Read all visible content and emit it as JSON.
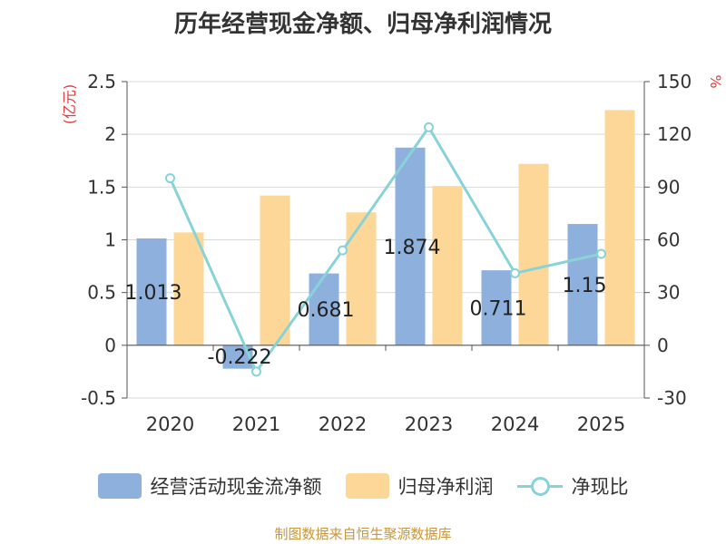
{
  "colors": {
    "bar_cash": "#8eb0dc",
    "bar_profit": "#fdd797",
    "line_ratio": "#88d3d8",
    "axis_unit": "#e23c3c",
    "source": "#c8963c",
    "text": "#333333",
    "grid": "#d9d9d9"
  },
  "source_note": "制图数据来自恒生聚源数据库",
  "chart_data": {
    "type": "bar",
    "title": "历年经营现金净额、归母净利润情况",
    "categories": [
      "2020",
      "2021",
      "2022",
      "2023",
      "2024",
      "2025"
    ],
    "series": [
      {
        "name": "经营活动现金流净额",
        "axis": "left",
        "kind": "bar",
        "values": [
          1.013,
          -0.222,
          0.681,
          1.874,
          0.711,
          1.15
        ],
        "labels": [
          "1.013",
          "-0.222",
          "0.681",
          "1.874",
          "0.711",
          "1.15"
        ]
      },
      {
        "name": "归母净利润",
        "axis": "left",
        "kind": "bar",
        "values": [
          1.07,
          1.42,
          1.26,
          1.51,
          1.72,
          2.23
        ]
      },
      {
        "name": "净现比",
        "axis": "right",
        "kind": "line",
        "values": [
          95,
          -15,
          54,
          124,
          41,
          52
        ]
      }
    ],
    "y_left": {
      "unit": "(亿元)",
      "min": -0.5,
      "max": 2.5,
      "ticks": [
        -0.5,
        0,
        0.5,
        1,
        1.5,
        2,
        2.5
      ],
      "tick_labels": [
        "-0.5",
        "0",
        "0.5",
        "1",
        "1.5",
        "2",
        "2.5"
      ]
    },
    "y_right": {
      "unit": "%",
      "min": -30,
      "max": 150,
      "ticks": [
        -30,
        0,
        30,
        60,
        90,
        120,
        150
      ],
      "tick_labels": [
        "-30",
        "0",
        "30",
        "60",
        "90",
        "120",
        "150"
      ]
    },
    "grid": true,
    "legend_position": "bottom"
  }
}
